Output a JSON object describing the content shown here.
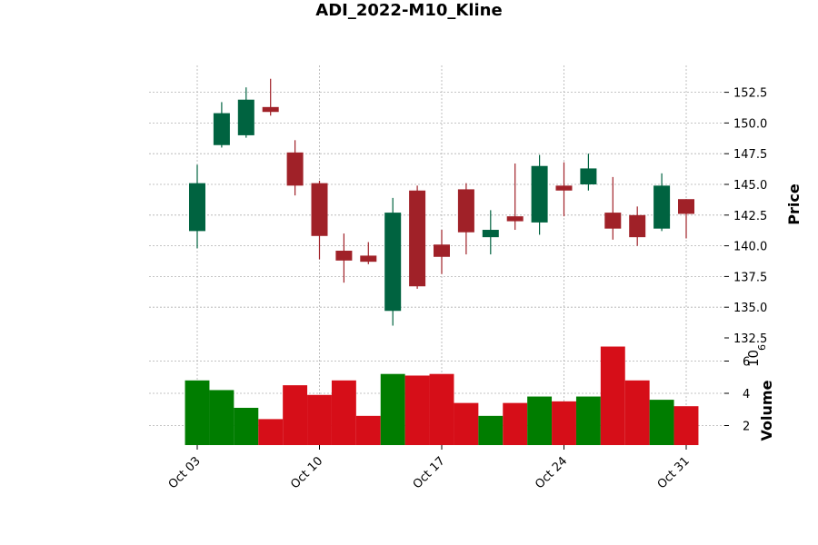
{
  "chart_data": {
    "type": "candlestick",
    "title": "ADI_2022-M10_Kline",
    "price_label": "Price",
    "volume_label": "Volume",
    "volume_exponent": "6",
    "price_ylim": [
      132.5,
      154.0
    ],
    "price_ticks": [
      "132.5",
      "135.0",
      "137.5",
      "140.0",
      "142.5",
      "145.0",
      "147.5",
      "150.0",
      "152.5"
    ],
    "volume_ylim": [
      0.9,
      6.5
    ],
    "volume_ticks": [
      "2",
      "4",
      "6"
    ],
    "x_ticks": [
      {
        "index": 0,
        "label": "Oct 03"
      },
      {
        "index": 5,
        "label": "Oct 10"
      },
      {
        "index": 10,
        "label": "Oct 17"
      },
      {
        "index": 15,
        "label": "Oct 24"
      },
      {
        "index": 20,
        "label": "Oct 31"
      }
    ],
    "grid": true,
    "colors": {
      "up": "#006340",
      "down": "#a02128",
      "volume_up": "#007d00",
      "volume_down": "#d60e18",
      "grid": "#b0b0b0"
    },
    "candles": [
      {
        "date": "2022-10-03",
        "open": 141.2,
        "high": 146.6,
        "low": 139.8,
        "close": 145.1,
        "volume": 4.8
      },
      {
        "date": "2022-10-04",
        "open": 148.2,
        "high": 151.7,
        "low": 148.0,
        "close": 150.8,
        "volume": 4.2
      },
      {
        "date": "2022-10-05",
        "open": 149.0,
        "high": 152.9,
        "low": 148.8,
        "close": 151.9,
        "volume": 3.1
      },
      {
        "date": "2022-10-06",
        "open": 151.3,
        "high": 153.6,
        "low": 150.6,
        "close": 150.9,
        "volume": 2.4
      },
      {
        "date": "2022-10-07",
        "open": 147.6,
        "high": 148.6,
        "low": 144.1,
        "close": 144.9,
        "volume": 4.5
      },
      {
        "date": "2022-10-10",
        "open": 145.1,
        "high": 145.3,
        "low": 138.9,
        "close": 140.8,
        "volume": 3.9
      },
      {
        "date": "2022-10-11",
        "open": 139.6,
        "high": 141.0,
        "low": 137.0,
        "close": 138.8,
        "volume": 4.8
      },
      {
        "date": "2022-10-12",
        "open": 139.2,
        "high": 140.3,
        "low": 138.5,
        "close": 138.7,
        "volume": 2.6
      },
      {
        "date": "2022-10-13",
        "open": 134.7,
        "high": 143.9,
        "low": 133.5,
        "close": 142.7,
        "volume": 5.2
      },
      {
        "date": "2022-10-14",
        "open": 144.5,
        "high": 144.9,
        "low": 136.5,
        "close": 136.7,
        "volume": 5.1
      },
      {
        "date": "2022-10-17",
        "open": 140.1,
        "high": 141.3,
        "low": 137.7,
        "close": 139.1,
        "volume": 5.2
      },
      {
        "date": "2022-10-18",
        "open": 144.6,
        "high": 145.1,
        "low": 139.3,
        "close": 141.1,
        "volume": 3.4
      },
      {
        "date": "2022-10-19",
        "open": 140.7,
        "high": 142.9,
        "low": 139.3,
        "close": 141.3,
        "volume": 2.6
      },
      {
        "date": "2022-10-20",
        "open": 142.4,
        "high": 146.7,
        "low": 141.3,
        "close": 142.0,
        "volume": 3.4
      },
      {
        "date": "2022-10-21",
        "open": 141.9,
        "high": 147.4,
        "low": 140.9,
        "close": 146.5,
        "volume": 3.8
      },
      {
        "date": "2022-10-24",
        "open": 144.9,
        "high": 146.8,
        "low": 142.4,
        "close": 144.5,
        "volume": 3.5
      },
      {
        "date": "2022-10-25",
        "open": 145.0,
        "high": 147.5,
        "low": 144.5,
        "close": 146.3,
        "volume": 3.8
      },
      {
        "date": "2022-10-26",
        "open": 142.7,
        "high": 145.6,
        "low": 140.5,
        "close": 141.4,
        "volume": 6.9
      },
      {
        "date": "2022-10-27",
        "open": 142.5,
        "high": 143.2,
        "low": 140.0,
        "close": 140.7,
        "volume": 4.8
      },
      {
        "date": "2022-10-28",
        "open": 141.4,
        "high": 145.9,
        "low": 141.2,
        "close": 144.9,
        "volume": 3.6
      },
      {
        "date": "2022-10-31",
        "open": 143.8,
        "high": 143.8,
        "low": 140.6,
        "close": 142.6,
        "volume": 3.2
      }
    ]
  }
}
